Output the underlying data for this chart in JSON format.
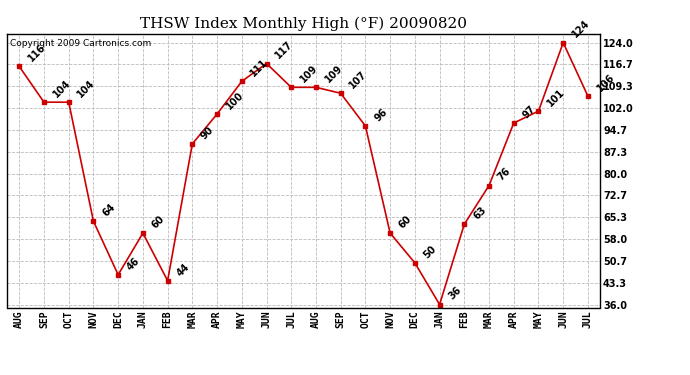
{
  "title": "THSW Index Monthly High (°F) 20090820",
  "copyright": "Copyright 2009 Cartronics.com",
  "months": [
    "AUG",
    "SEP",
    "OCT",
    "NOV",
    "DEC",
    "JAN",
    "FEB",
    "MAR",
    "APR",
    "MAY",
    "JUN",
    "JUL",
    "AUG",
    "SEP",
    "OCT",
    "NOV",
    "DEC",
    "JAN",
    "FEB",
    "MAR",
    "APR",
    "MAY",
    "JUN",
    "JUL"
  ],
  "values": [
    116,
    104,
    104,
    64,
    46,
    60,
    44,
    90,
    100,
    111,
    117,
    109,
    109,
    107,
    96,
    60,
    50,
    36,
    63,
    76,
    97,
    101,
    124,
    106
  ],
  "line_color": "#cc0000",
  "marker_color": "#cc0000",
  "bg_color": "#ffffff",
  "grid_color": "#bbbbbb",
  "ylim_min": 36.0,
  "ylim_max": 124.0,
  "yticks": [
    36.0,
    43.3,
    50.7,
    58.0,
    65.3,
    72.7,
    80.0,
    87.3,
    94.7,
    102.0,
    109.3,
    116.7,
    124.0
  ],
  "title_fontsize": 11,
  "label_fontsize": 7,
  "tick_fontsize": 7,
  "copyright_fontsize": 6.5
}
